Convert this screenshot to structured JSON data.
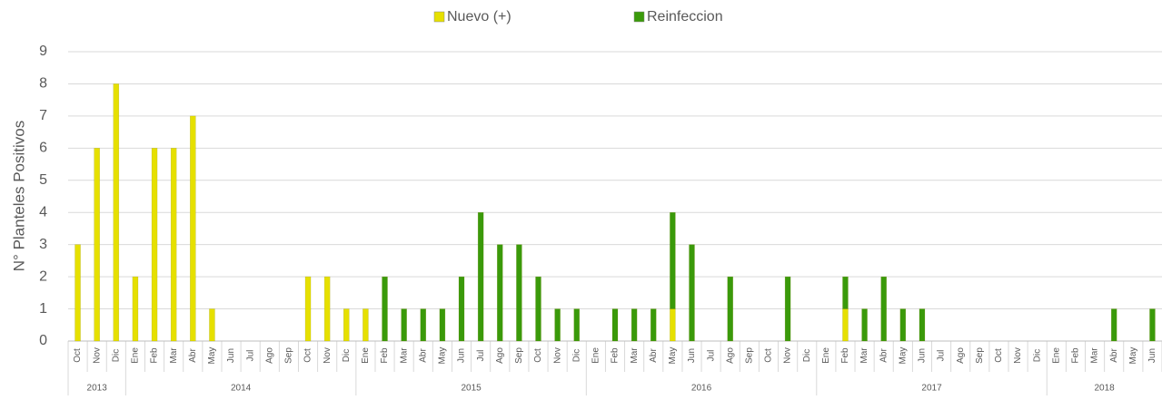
{
  "chart_data": {
    "type": "bar",
    "stacked": true,
    "y_label": "N° Planteles Positivos",
    "categories": [
      "Oct",
      "Nov",
      "Dic",
      "Ene",
      "Feb",
      "Mar",
      "Abr",
      "May",
      "Jun",
      "Jul",
      "Ago",
      "Sep",
      "Oct",
      "Nov",
      "Dic",
      "Ene",
      "Feb",
      "Mar",
      "Abr",
      "May",
      "Jun",
      "Jul",
      "Ago",
      "Sep",
      "Oct",
      "Nov",
      "Dic",
      "Ene",
      "Feb",
      "Mar",
      "Abr",
      "May",
      "Jun",
      "Jul",
      "Ago",
      "Sep",
      "Oct",
      "Nov",
      "Dic",
      "Ene",
      "Feb",
      "Mar",
      "Abr",
      "May",
      "Jun",
      "Jul",
      "Ago",
      "Sep",
      "Oct",
      "Nov",
      "Dic",
      "Ene",
      "Feb",
      "Mar",
      "Abr",
      "May",
      "Jun"
    ],
    "x_groups": [
      {
        "label": "2013",
        "span": 3
      },
      {
        "label": "2014",
        "span": 12
      },
      {
        "label": "2015",
        "span": 12
      },
      {
        "label": "2016",
        "span": 12
      },
      {
        "label": "2017",
        "span": 12
      },
      {
        "label": "2018",
        "span": 6
      }
    ],
    "series": [
      {
        "name": "Nuevo (+)",
        "color": "#e6e000",
        "values": [
          3,
          6,
          8,
          2,
          6,
          6,
          7,
          1,
          0,
          0,
          0,
          0,
          2,
          2,
          1,
          1,
          0,
          0,
          0,
          0,
          0,
          0,
          0,
          0,
          0,
          0,
          0,
          0,
          0,
          0,
          0,
          1,
          0,
          0,
          0,
          0,
          0,
          0,
          0,
          0,
          1,
          0,
          0,
          0,
          0,
          0,
          0,
          0,
          0,
          0,
          0,
          0,
          0,
          0,
          0,
          0,
          0
        ]
      },
      {
        "name": "Reinfeccion",
        "color": "#3a9a0a",
        "values": [
          0,
          0,
          0,
          0,
          0,
          0,
          0,
          0,
          0,
          0,
          0,
          0,
          0,
          0,
          0,
          0,
          2,
          1,
          1,
          1,
          2,
          4,
          3,
          3,
          2,
          1,
          1,
          0,
          1,
          1,
          1,
          3,
          3,
          0,
          2,
          0,
          0,
          2,
          0,
          0,
          1,
          1,
          2,
          1,
          1,
          0,
          0,
          0,
          0,
          0,
          0,
          0,
          0,
          0,
          1,
          0,
          1
        ]
      }
    ],
    "ylim": [
      0,
      9
    ],
    "yticks": [
      0,
      1,
      2,
      3,
      4,
      5,
      6,
      7,
      8,
      9
    ],
    "grid": true,
    "legend": "top"
  }
}
